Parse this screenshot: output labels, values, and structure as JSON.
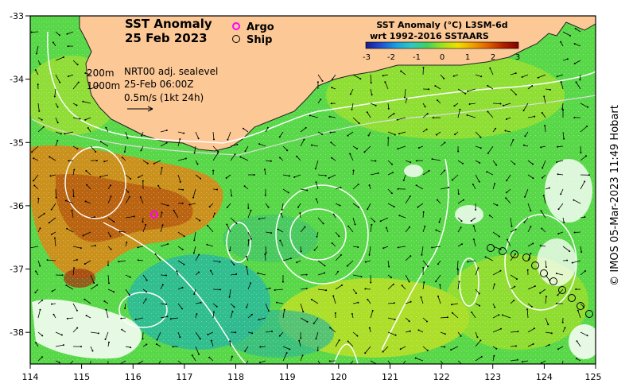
{
  "title": {
    "line1": "SST Anomaly",
    "line2": "25 Feb 2023"
  },
  "markers_legend": [
    {
      "label": "Argo",
      "color": "#ff00ff"
    },
    {
      "label": "Ship",
      "color": "#000000"
    }
  ],
  "colorbar": {
    "title_line1": "SST Anomaly (°C) L3SM-6d",
    "title_line2": "wrt 1992-2016 SSTAARS",
    "ticks": [
      "-3",
      "-2",
      "-1",
      "0",
      "1",
      "2",
      "3"
    ],
    "colors": [
      "#1a1a8c",
      "#2050d0",
      "#1aa0e0",
      "#30c8c0",
      "#40d060",
      "#a0e020",
      "#f0e000",
      "#f0a000",
      "#e06000",
      "#b02000",
      "#800000"
    ]
  },
  "info": {
    "contour_200": "200m",
    "contour_1000": "1000m",
    "sealevel": "NRT00 adj. sealevel",
    "time": "25-Feb 06:00Z",
    "scale": "0.5m/s (1kt 24h)"
  },
  "axes": {
    "x_ticks": [
      "114",
      "115",
      "116",
      "117",
      "118",
      "119",
      "120",
      "121",
      "122",
      "123",
      "124",
      "125"
    ],
    "y_ticks": [
      "-33",
      "-34",
      "-35",
      "-36",
      "-37",
      "-38"
    ]
  },
  "credit": "© IMOS 05-Mar-2023 11:49 Hobart",
  "colors": {
    "land": "#fcc896",
    "ocean": "#58d848",
    "warm": "#c86a10",
    "cool": "#20b0a0",
    "argo": "#ff00ff"
  }
}
